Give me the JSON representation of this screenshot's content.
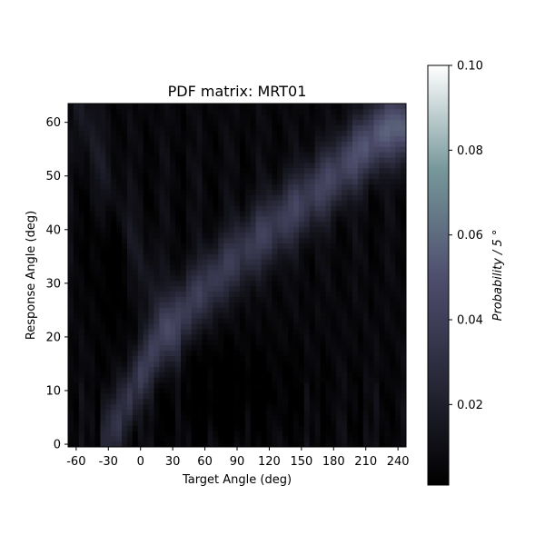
{
  "chart_data": {
    "type": "heatmap",
    "title": "PDF matrix: MRT01",
    "xlabel": "Target Angle (deg)",
    "ylabel": "Response Angle (deg)",
    "colorbar_label": "Probability / 5 °",
    "colormap": "bone",
    "x_ticks": [
      "-60",
      "-30",
      "0",
      "30",
      "60",
      "90",
      "120",
      "150",
      "180",
      "210",
      "240"
    ],
    "x_tick_values": [
      -60,
      -30,
      0,
      30,
      60,
      90,
      120,
      150,
      180,
      210,
      240
    ],
    "xlim": [
      -67.5,
      247.5
    ],
    "y_ticks": [
      "0",
      "10",
      "20",
      "30",
      "40",
      "50",
      "60"
    ],
    "y_tick_values": [
      0,
      10,
      20,
      30,
      40,
      50,
      60
    ],
    "ylim": [
      -0.5,
      63.5
    ],
    "colorbar_ticks": [
      "0.02",
      "0.04",
      "0.06",
      "0.08",
      "0.10"
    ],
    "colorbar_tick_values": [
      0.02,
      0.04,
      0.06,
      0.08,
      0.1
    ],
    "color_range": [
      0.001,
      0.1
    ],
    "x_bin_width": 5,
    "y_bin_width": 1,
    "x_bin_start": -65,
    "y_bin_start": 0,
    "ridge": [
      {
        "x": -30,
        "y": 2,
        "p": 0.022
      },
      {
        "x": -20,
        "y": 5,
        "p": 0.024
      },
      {
        "x": -10,
        "y": 9,
        "p": 0.03
      },
      {
        "x": 0,
        "y": 13,
        "p": 0.034
      },
      {
        "x": 20,
        "y": 20,
        "p": 0.03
      },
      {
        "x": 50,
        "y": 27,
        "p": 0.032
      },
      {
        "x": 90,
        "y": 35,
        "p": 0.03
      },
      {
        "x": 120,
        "y": 40,
        "p": 0.033
      },
      {
        "x": 150,
        "y": 45,
        "p": 0.034
      },
      {
        "x": 180,
        "y": 50,
        "p": 0.036
      },
      {
        "x": 200,
        "y": 54,
        "p": 0.042
      },
      {
        "x": 230,
        "y": 59,
        "p": 0.05
      }
    ]
  }
}
